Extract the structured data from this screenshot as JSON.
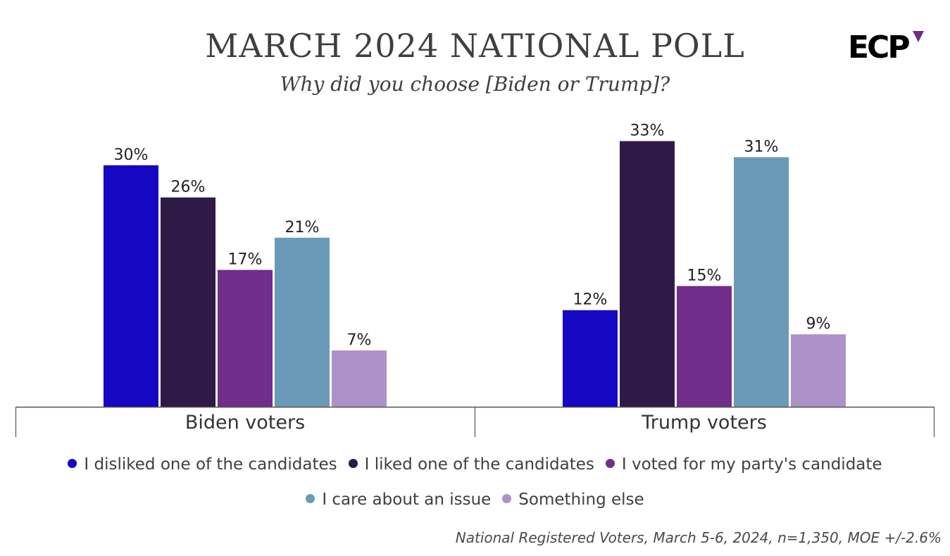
{
  "header": {
    "title": "MARCH 2024 NATIONAL POLL",
    "subtitle": "Why did you choose [Biden or Trump]?",
    "logo_text": "ECP"
  },
  "footnote": "National Registered Voters, March 5-6, 2024, n=1,350, MOE +/-2.6%",
  "chart_data": {
    "type": "bar",
    "title": "MARCH 2024 NATIONAL POLL",
    "subtitle": "Why did you choose [Biden or Trump]?",
    "categories": [
      "Biden voters",
      "Trump voters"
    ],
    "series": [
      {
        "name": "I disliked one of the candidates",
        "values": [
          30,
          12
        ],
        "color": "#1507c2"
      },
      {
        "name": "I liked one of the candidates",
        "values": [
          26,
          33
        ],
        "color": "#2e1a47"
      },
      {
        "name": "I voted for my party's candidate",
        "values": [
          17,
          15
        ],
        "color": "#712d8a"
      },
      {
        "name": "I care about an issue",
        "values": [
          21,
          31
        ],
        "color": "#6b9ab9"
      },
      {
        "name": "Something else",
        "values": [
          7,
          9
        ],
        "color": "#ad92c9"
      }
    ],
    "value_suffix": "%",
    "ylim": [
      0,
      35
    ],
    "grid": false,
    "legend_position": "bottom"
  }
}
